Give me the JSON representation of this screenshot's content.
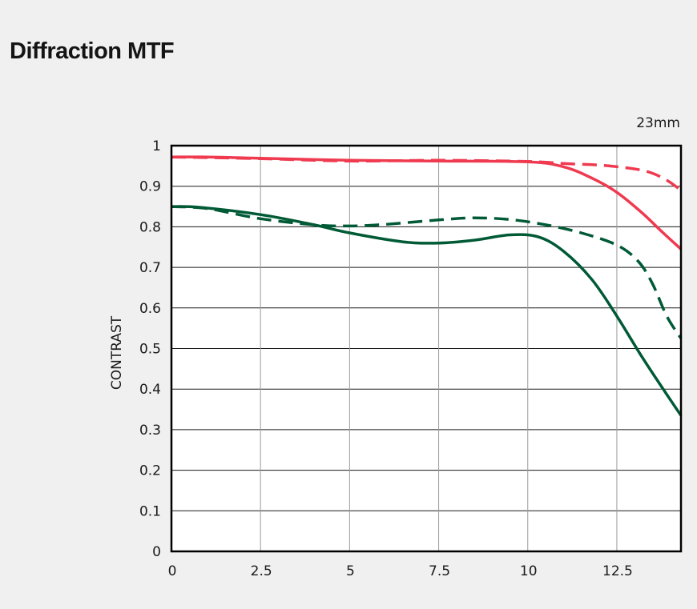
{
  "page": {
    "title": "Diffraction MTF"
  },
  "chart_data": {
    "type": "line",
    "title": "Diffraction MTF",
    "subtitle": "23mm",
    "xlabel": "",
    "ylabel": "CONTRAST",
    "xlim": [
      0,
      14.3
    ],
    "ylim": [
      0,
      1
    ],
    "x_ticks": [
      0,
      2.5,
      5,
      7.5,
      10,
      12.5
    ],
    "x_tick_labels": [
      "0",
      "2.5",
      "5",
      "7.5",
      "10",
      "12.5"
    ],
    "y_ticks": [
      0,
      0.1,
      0.2,
      0.3,
      0.4,
      0.5,
      0.6,
      0.7,
      0.8,
      0.9,
      1
    ],
    "y_tick_labels": [
      "0",
      "0.1",
      "0.2",
      "0.3",
      "0.4",
      "0.5",
      "0.6",
      "0.7",
      "0.8",
      "0.9",
      "1"
    ],
    "grid": true,
    "series": [
      {
        "color": "#ef3a50",
        "dash": "solid",
        "x": [
          0,
          1,
          2.5,
          5,
          7.5,
          10,
          11,
          11.8,
          12.5,
          13.2,
          13.8,
          14.3
        ],
        "y": [
          0.972,
          0.972,
          0.969,
          0.964,
          0.962,
          0.96,
          0.948,
          0.92,
          0.885,
          0.835,
          0.785,
          0.745
        ]
      },
      {
        "color": "#ef3a50",
        "dash": "dashed",
        "x": [
          0,
          2.5,
          5,
          7.5,
          10,
          11,
          12,
          12.8,
          13.4,
          13.9,
          14.3
        ],
        "y": [
          0.972,
          0.968,
          0.962,
          0.964,
          0.961,
          0.956,
          0.952,
          0.945,
          0.935,
          0.915,
          0.89
        ]
      },
      {
        "color": "#005a36",
        "dash": "solid",
        "x": [
          0,
          0.8,
          2.5,
          4,
          5,
          6.5,
          7.5,
          8.5,
          9.5,
          10.3,
          11,
          11.8,
          12.5,
          13.2,
          13.8,
          14.3
        ],
        "y": [
          0.85,
          0.848,
          0.83,
          0.805,
          0.785,
          0.763,
          0.76,
          0.767,
          0.78,
          0.775,
          0.74,
          0.67,
          0.58,
          0.48,
          0.4,
          0.335
        ]
      },
      {
        "color": "#005a36",
        "dash": "dashed",
        "x": [
          0,
          1,
          2.5,
          4,
          5,
          6,
          7.5,
          8.5,
          9.5,
          10.5,
          11.5,
          12.5,
          13.1,
          13.5,
          13.9,
          14.3
        ],
        "y": [
          0.85,
          0.845,
          0.82,
          0.805,
          0.802,
          0.806,
          0.817,
          0.822,
          0.818,
          0.805,
          0.785,
          0.755,
          0.715,
          0.66,
          0.58,
          0.525
        ]
      }
    ]
  }
}
